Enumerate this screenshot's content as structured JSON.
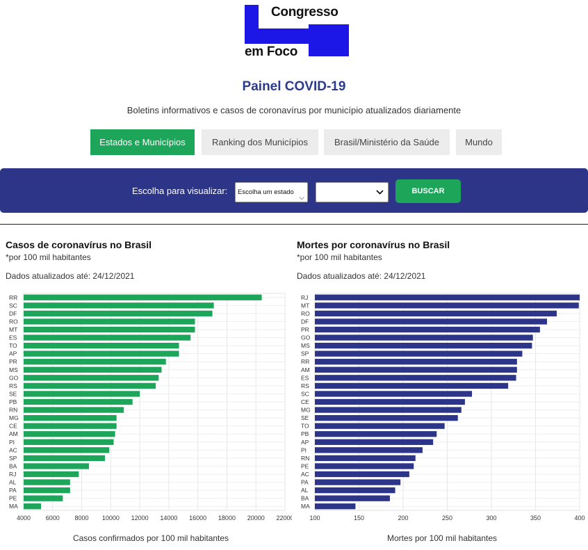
{
  "logo": {
    "line1": "Congresso",
    "line2": "em Foco"
  },
  "page": {
    "title": "Painel COVID-19",
    "subtitle": "Boletins informativos e casos de coronavírus por município atualizados diariamente"
  },
  "tabs": [
    {
      "label": "Estados e Municípios",
      "active": true
    },
    {
      "label": "Ranking dos Municípios",
      "active": false
    },
    {
      "label": "Brasil/Ministério da Saúde",
      "active": false
    },
    {
      "label": "Mundo",
      "active": false
    }
  ],
  "filter": {
    "label": "Escolha para visualizar:",
    "state_select_value": "Escolha um estado",
    "city_select_value": "",
    "button_label": "BUSCAR"
  },
  "colors": {
    "accent_green": "#1da55a",
    "navy": "#2c3587",
    "logo_blue": "#1c17e6"
  },
  "panels": {
    "cases": {
      "title": "Casos de coronavírus no Brasil",
      "note": "*por 100 mil habitantes",
      "date": "Dados atualizados até: 24/12/2021",
      "axis_title": "Casos confirmados por 100 mil habitantes"
    },
    "deaths": {
      "title": "Mortes por coronavírus no Brasil",
      "note": "*por 100 mil habitantes",
      "date": "Dados atualizados até: 24/12/2021",
      "axis_title": "Mortes por 100 mil habitantes"
    }
  },
  "chart_data": [
    {
      "type": "bar",
      "orientation": "horizontal",
      "color": "#1da55a",
      "categories": [
        "RR",
        "SC",
        "DF",
        "RO",
        "MT",
        "ES",
        "TO",
        "AP",
        "PR",
        "MS",
        "GO",
        "RS",
        "SE",
        "PB",
        "RN",
        "MG",
        "CE",
        "AM",
        "PI",
        "AC",
        "SP",
        "BA",
        "RJ",
        "AL",
        "PA",
        "PE",
        "MA"
      ],
      "values": [
        20400,
        17100,
        17000,
        15800,
        15800,
        15500,
        14700,
        14700,
        13800,
        13500,
        13300,
        13100,
        12000,
        11500,
        10900,
        10400,
        10400,
        10300,
        10200,
        9900,
        9600,
        8500,
        7800,
        7200,
        7200,
        6700,
        5200
      ],
      "xlim": [
        4000,
        22000
      ],
      "xticks": [
        4000,
        6000,
        8000,
        10000,
        12000,
        14000,
        16000,
        18000,
        20000,
        22000
      ],
      "xlabel": "Casos confirmados por 100 mil habitantes",
      "grid": true
    },
    {
      "type": "bar",
      "orientation": "horizontal",
      "color": "#2c3587",
      "categories": [
        "RJ",
        "MT",
        "RO",
        "DF",
        "PR",
        "GO",
        "MS",
        "SP",
        "RR",
        "AM",
        "ES",
        "RS",
        "SC",
        "CE",
        "MG",
        "SE",
        "TO",
        "PB",
        "AP",
        "PI",
        "RN",
        "PE",
        "AC",
        "PA",
        "AL",
        "BA",
        "MA"
      ],
      "values": [
        400,
        399,
        374,
        363,
        355,
        347,
        346,
        335,
        329,
        329,
        328,
        319,
        278,
        270,
        266,
        262,
        247,
        238,
        234,
        222,
        214,
        212,
        207,
        197,
        191,
        185,
        146
      ],
      "xlim": [
        100,
        400
      ],
      "xticks": [
        100,
        150,
        200,
        250,
        300,
        350,
        400
      ],
      "xlabel": "Mortes por 100 mil habitantes",
      "grid": true
    }
  ]
}
